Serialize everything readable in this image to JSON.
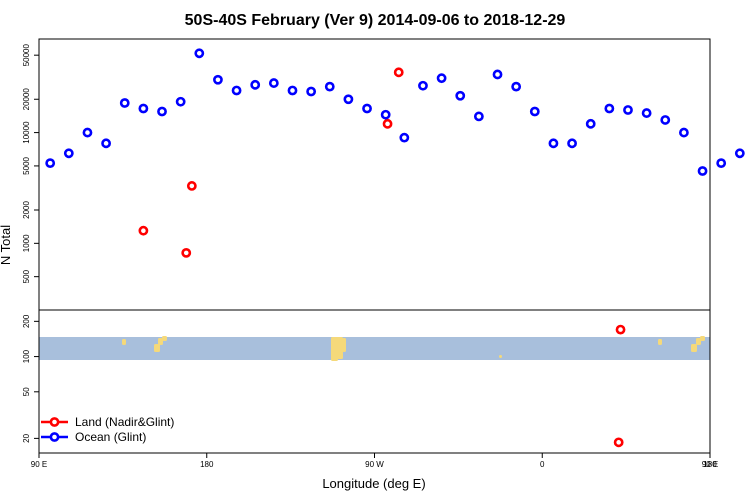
{
  "chart_data": {
    "type": "scatter",
    "title": "50S-40S February (Ver 9)   2014-09-06 to 2018-12-29",
    "xlabel": "Longitude (deg E)",
    "ylabel": "N Total",
    "xlim": [
      90,
      450
    ],
    "x_ticks": [
      {
        "value": 90,
        "label": "90 E"
      },
      {
        "value": 180,
        "label": "180"
      },
      {
        "value": 270,
        "label": "90 W"
      },
      {
        "value": 360,
        "label": "0"
      },
      {
        "value": 450,
        "label": "90 E"
      },
      {
        "value": 540,
        "label": "180"
      }
    ],
    "upper_panel": {
      "yscale": "log",
      "ylim": [
        250,
        70000
      ],
      "y_ticks": [
        500,
        1000,
        2000,
        5000,
        10000,
        20000,
        50000
      ],
      "y_tick_labels": [
        "500",
        "1000",
        "2000",
        "5000",
        "10000",
        "20000",
        "50000"
      ],
      "series": [
        {
          "name": "Land (Nadir&Glint)",
          "color": "#ff0000",
          "points": [
            [
              146,
              1300
            ],
            [
              169,
              820
            ],
            [
              172,
              3300
            ],
            [
              283,
              35000
            ],
            [
              277,
              12000
            ],
            [
              526,
              1300
            ],
            [
              547,
              820
            ],
            [
              550,
              3300
            ]
          ]
        },
        {
          "name": "Ocean (Glint)",
          "color": "#0000ff",
          "points": [
            [
              96,
              5300
            ],
            [
              106,
              6500
            ],
            [
              116,
              10000
            ],
            [
              126,
              8000
            ],
            [
              136,
              18500
            ],
            [
              146,
              16500
            ],
            [
              156,
              15500
            ],
            [
              166,
              19000
            ],
            [
              176,
              52000
            ],
            [
              186,
              30000
            ],
            [
              196,
              24000
            ],
            [
              206,
              27000
            ],
            [
              216,
              28000
            ],
            [
              226,
              24000
            ],
            [
              236,
              23500
            ],
            [
              246,
              26000
            ],
            [
              256,
              20000
            ],
            [
              266,
              16500
            ],
            [
              276,
              14500
            ],
            [
              286,
              9000
            ],
            [
              296,
              26500
            ],
            [
              306,
              31000
            ],
            [
              316,
              21500
            ],
            [
              326,
              14000
            ],
            [
              336,
              33500
            ],
            [
              346,
              26000
            ],
            [
              356,
              15500
            ],
            [
              366,
              8000
            ],
            [
              376,
              8000
            ],
            [
              386,
              12000
            ],
            [
              396,
              16500
            ],
            [
              406,
              16000
            ],
            [
              416,
              15000
            ],
            [
              426,
              13000
            ],
            [
              436,
              10000
            ],
            [
              446,
              4500
            ],
            [
              456,
              5300
            ],
            [
              466,
              6500
            ],
            [
              476,
              10000
            ],
            [
              486,
              8000
            ],
            [
              496,
              18500
            ],
            [
              506,
              16500
            ],
            [
              516,
              15500
            ],
            [
              526,
              19000
            ],
            [
              536,
              52000
            ]
          ]
        }
      ]
    },
    "lower_panel": {
      "yscale": "log",
      "ylim": [
        15,
        250
      ],
      "y_ticks": [
        20,
        50,
        100,
        200
      ],
      "y_tick_labels": [
        "20",
        "50",
        "100",
        "200"
      ],
      "series": [
        {
          "name": "Land (Nadir&Glint)",
          "color": "#ff0000",
          "points": [
            [
              402,
              170
            ],
            [
              401,
              18.5
            ]
          ]
        }
      ],
      "background_map": {
        "ocean_color": "#a8bfdc",
        "land_color": "#f5d97a"
      }
    },
    "legend": {
      "placement": "bottom-left",
      "entries": [
        {
          "label": "Land (Nadir&Glint)",
          "color": "#ff0000"
        },
        {
          "label": "Ocean (Glint)",
          "color": "#0000ff"
        }
      ]
    }
  }
}
